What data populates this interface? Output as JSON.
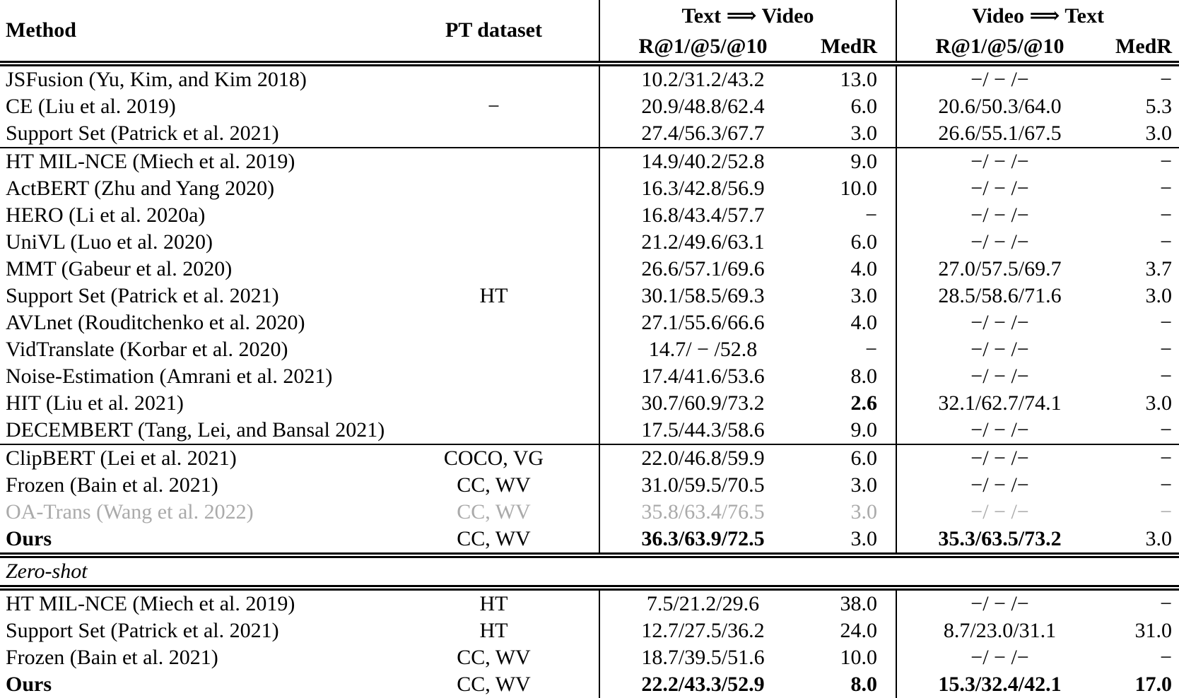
{
  "table": {
    "header": {
      "method": "Method",
      "pt_dataset": "PT dataset",
      "group_t2v": "Text ⟹ Video",
      "group_v2t": "Video ⟹ Text",
      "recall": "R@1/@5/@10",
      "medr": "MedR"
    },
    "colors": {
      "text": "#000000",
      "muted_row": "#aaaaaa",
      "rule": "#000000",
      "background": "#ffffff"
    },
    "sections": [
      {
        "rule_above": "double",
        "rows": [
          {
            "cells": [
              "JSFusion (Yu, Kim, and Kim 2018)",
              "",
              "10.2/31.2/43.2",
              "13.0",
              "−/ − /−",
              "−"
            ]
          },
          {
            "cells": [
              "CE (Liu et al. 2019)",
              "−",
              "20.9/48.8/62.4",
              "6.0",
              "20.6/50.3/64.0",
              "5.3"
            ]
          },
          {
            "cells": [
              "Support Set (Patrick et al. 2021)",
              "",
              "27.4/56.3/67.7",
              "3.0",
              "26.6/55.1/67.5",
              "3.0"
            ]
          }
        ]
      },
      {
        "rule_above": "single",
        "rows": [
          {
            "cells": [
              "HT MIL-NCE (Miech et al. 2019)",
              "",
              "14.9/40.2/52.8",
              "9.0",
              "−/ − /−",
              "−"
            ]
          },
          {
            "cells": [
              "ActBERT (Zhu and Yang 2020)",
              "",
              "16.3/42.8/56.9",
              "10.0",
              "−/ − /−",
              "−"
            ]
          },
          {
            "cells": [
              "HERO (Li et al. 2020a)",
              "",
              "16.8/43.4/57.7",
              "−",
              "−/ − /−",
              "−"
            ]
          },
          {
            "cells": [
              "UniVL (Luo et al. 2020)",
              "",
              "21.2/49.6/63.1",
              "6.0",
              "−/ − /−",
              "−"
            ]
          },
          {
            "cells": [
              "MMT (Gabeur et al. 2020)",
              "",
              "26.6/57.1/69.6",
              "4.0",
              "27.0/57.5/69.7",
              "3.7"
            ]
          },
          {
            "cells": [
              "Support Set (Patrick et al. 2021)",
              "HT",
              "30.1/58.5/69.3",
              "3.0",
              "28.5/58.6/71.6",
              "3.0"
            ]
          },
          {
            "cells": [
              "AVLnet (Rouditchenko et al. 2020)",
              "",
              "27.1/55.6/66.6",
              "4.0",
              "−/ − /−",
              "−"
            ]
          },
          {
            "cells": [
              "VidTranslate (Korbar et al. 2020)",
              "",
              "14.7/ − /52.8",
              "−",
              "−/ − /−",
              "−"
            ]
          },
          {
            "cells": [
              "Noise-Estimation (Amrani et al. 2021)",
              "",
              "17.4/41.6/53.6",
              "8.0",
              "−/ − /−",
              "−"
            ]
          },
          {
            "cells": [
              "HIT (Liu et al. 2021)",
              "",
              "30.7/60.9/73.2",
              "2.6",
              "32.1/62.7/74.1",
              "3.0"
            ],
            "bold": [
              3
            ]
          },
          {
            "cells": [
              "DECEMBERT (Tang, Lei, and Bansal 2021)",
              "",
              "17.5/44.3/58.6",
              "9.0",
              "−/ − /−",
              "−"
            ]
          }
        ]
      },
      {
        "rule_above": "single",
        "rows": [
          {
            "cells": [
              "ClipBERT (Lei et al. 2021)",
              "COCO, VG",
              "22.0/46.8/59.9",
              "6.0",
              "−/ − /−",
              "−"
            ]
          },
          {
            "cells": [
              "Frozen (Bain et al. 2021)",
              "CC, WV",
              "31.0/59.5/70.5",
              "3.0",
              "−/ − /−",
              "−"
            ]
          },
          {
            "cells": [
              "OA-Trans (Wang et al. 2022)",
              "CC, WV",
              "35.8/63.4/76.5",
              "3.0",
              "−/ − /−",
              "−"
            ],
            "muted": true
          },
          {
            "cells": [
              "Ours",
              "CC, WV",
              "36.3/63.9/72.5",
              "3.0",
              "35.3/63.5/73.2",
              "3.0"
            ],
            "bold": [
              0,
              2,
              4
            ]
          }
        ]
      },
      {
        "label": "Zero-shot",
        "rule_above": "double"
      },
      {
        "rule_above": "double",
        "rows": [
          {
            "cells": [
              "HT MIL-NCE (Miech et al. 2019)",
              "HT",
              "7.5/21.2/29.6",
              "38.0",
              "−/ − /−",
              "−"
            ]
          },
          {
            "cells": [
              "Support Set (Patrick et al. 2021)",
              "HT",
              "12.7/27.5/36.2",
              "24.0",
              "8.7/23.0/31.1",
              "31.0"
            ]
          },
          {
            "cells": [
              "Frozen (Bain et al. 2021)",
              "CC, WV",
              "18.7/39.5/51.6",
              "10.0",
              "−/ − /−",
              "−"
            ]
          },
          {
            "cells": [
              "Ours",
              "CC, WV",
              "22.2/43.3/52.9",
              "8.0",
              "15.3/32.4/42.1",
              "17.0"
            ],
            "bold": [
              0,
              2,
              3,
              4,
              5
            ]
          }
        ]
      }
    ]
  }
}
